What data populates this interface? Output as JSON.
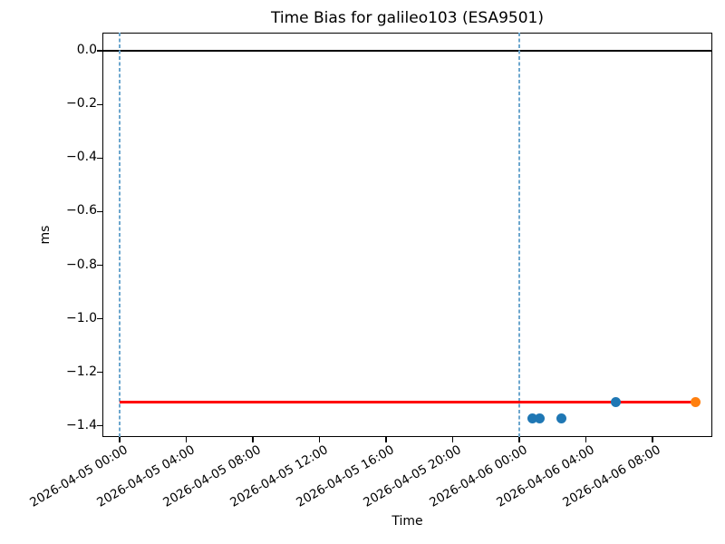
{
  "chart_data": {
    "type": "scatter",
    "title": "Time Bias for galileo103 (ESA9501)",
    "xlabel": "Time",
    "ylabel": "ms",
    "grid": false,
    "legend": null,
    "x_axis": {
      "unit": "hours since 2026-04-05 00:00",
      "lim_hours": [
        -1.03,
        35.59
      ],
      "ticks": [
        {
          "hours": 0,
          "label": "2026-04-05 00:00"
        },
        {
          "hours": 4,
          "label": "2026-04-05 04:00"
        },
        {
          "hours": 8,
          "label": "2026-04-05 08:00"
        },
        {
          "hours": 12,
          "label": "2026-04-05 12:00"
        },
        {
          "hours": 16,
          "label": "2026-04-05 16:00"
        },
        {
          "hours": 20,
          "label": "2026-04-05 20:00"
        },
        {
          "hours": 24,
          "label": "2026-04-06 00:00"
        },
        {
          "hours": 28,
          "label": "2026-04-06 04:00"
        },
        {
          "hours": 32,
          "label": "2026-04-06 08:00"
        }
      ]
    },
    "y_axis": {
      "lim": [
        -1.441,
        0.068
      ],
      "ticks": [
        {
          "value": 0.0,
          "label": "0.0"
        },
        {
          "value": -0.2,
          "label": "−0.2"
        },
        {
          "value": -0.4,
          "label": "−0.4"
        },
        {
          "value": -0.6,
          "label": "−0.6"
        },
        {
          "value": -0.8,
          "label": "−0.8"
        },
        {
          "value": -1.0,
          "label": "−1.0"
        },
        {
          "value": -1.2,
          "label": "−1.2"
        },
        {
          "value": -1.4,
          "label": "−1.4"
        }
      ]
    },
    "lines": [
      {
        "name": "zero-reference-line",
        "orientation": "horizontal",
        "value": 0.0,
        "color": "#000000",
        "style": "solid",
        "width": 1.5,
        "from_hours": null,
        "to_hours": null
      },
      {
        "name": "day-boundary-2026-04-05",
        "orientation": "vertical",
        "hours": 0,
        "time": "2026-04-05 00:00",
        "color": "#6da7ce",
        "style": "dashed",
        "width": 1.2
      },
      {
        "name": "day-boundary-2026-04-06",
        "orientation": "vertical",
        "hours": 24,
        "time": "2026-04-06 00:00",
        "color": "#6da7ce",
        "style": "dashed",
        "width": 1.2
      },
      {
        "name": "bias-estimate-line",
        "orientation": "horizontal",
        "value": -1.312,
        "color": "#ff0000",
        "style": "solid",
        "width": 3,
        "from_hours": 0,
        "to_hours": 34.57
      }
    ],
    "series": [
      {
        "name": "time-bias-observations",
        "color": "#1f77b4",
        "marker": "circle",
        "points": [
          {
            "time": "2026-04-06 00:50",
            "hours": 24.8,
            "ms": -1.373
          },
          {
            "time": "2026-04-06 01:10",
            "hours": 25.2,
            "ms": -1.373
          },
          {
            "time": "2026-04-06 02:35",
            "hours": 26.55,
            "ms": -1.373
          },
          {
            "time": "2026-04-06 05:50",
            "hours": 29.8,
            "ms": -1.312
          }
        ]
      },
      {
        "name": "latest-observation",
        "color": "#ff7f0e",
        "marker": "circle",
        "points": [
          {
            "time": "2026-04-06 10:35",
            "hours": 34.57,
            "ms": -1.312
          }
        ]
      }
    ]
  }
}
